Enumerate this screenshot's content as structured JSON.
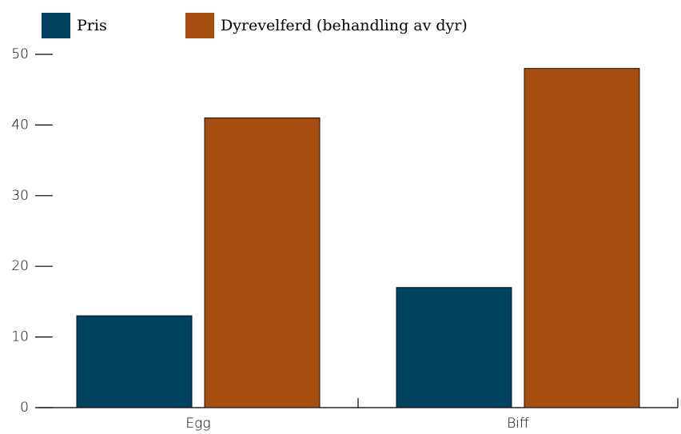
{
  "chart_data": {
    "type": "bar",
    "categories": [
      "Egg",
      "Biff"
    ],
    "series": [
      {
        "name": "Pris",
        "color": "#00425f",
        "values": [
          13,
          17
        ]
      },
      {
        "name": "Dyrevelferd (behandling av dyr)",
        "color": "#a84d10",
        "values": [
          41,
          48
        ]
      }
    ],
    "ylim": [
      0,
      50
    ],
    "yticks": [
      0,
      10,
      20,
      30,
      40,
      50
    ],
    "legend": "top-left"
  }
}
